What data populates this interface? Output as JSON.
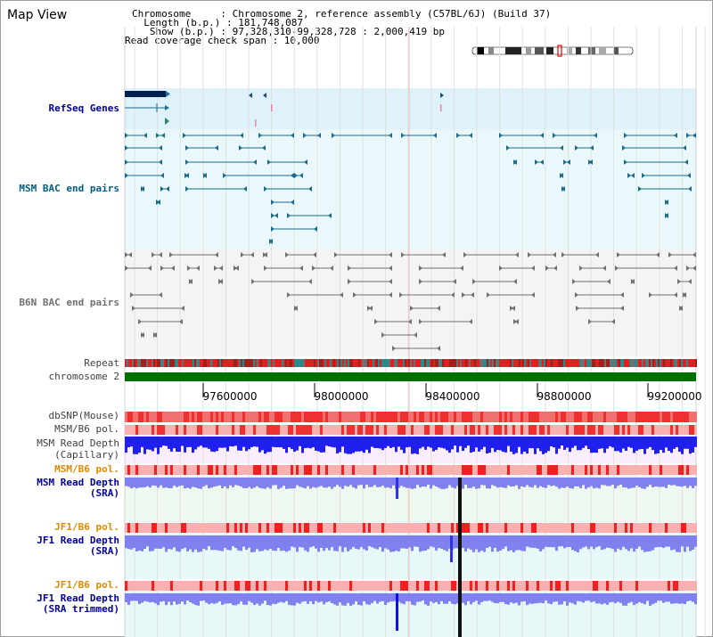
{
  "page": {
    "title": "Map View"
  },
  "info": {
    "chromosome_line": "Chromosome     : Chromosome 2, reference assembly (C57BL/6J) (Build 37)",
    "length_line": "  Length (b.p.) : 181,748,087",
    "show_line": "   Show (b.p.) : 97,328,310-99,328,728 : 2,000,419 bp",
    "coverage_line": "Read coverage check span : 10,000"
  },
  "tracks": {
    "refseq": "RefSeq Genes",
    "msm_bac": "MSM BAC end pairs",
    "b6n_bac": "B6N BAC end pairs",
    "repeat": "Repeat",
    "chromosome": "chromosome 2",
    "dbsnp": "dbSNP(Mouse)",
    "msm_b6_pol": "MSM/B6 pol.",
    "msm_read_depth_cap_1": "MSM Read Depth",
    "msm_read_depth_cap_2": "(Capillary)",
    "msm_b6_pol_2": "MSM/B6 pol.",
    "msm_read_depth_sra_1": "MSM Read Depth",
    "msm_read_depth_sra_2": "(SRA)",
    "jf1_b6_pol": "JF1/B6 pol.",
    "jf1_read_depth_sra_1": "JF1 Read Depth",
    "jf1_read_depth_sra_2": "(SRA)",
    "jf1_b6_pol_2": "JF1/B6 pol.",
    "jf1_read_depth_trim_1": "JF1 Read Depth",
    "jf1_read_depth_trim_2": "(SRA trimmed)"
  },
  "axis": {
    "ticks": [
      "97600000",
      "98000000",
      "98400000",
      "98800000",
      "99200000"
    ]
  },
  "colors": {
    "refseq_bg": "#dff1fb",
    "msm_bac_bg": "#eaf8fb",
    "b6n_bac_bg": "#f4f4f4",
    "gene": "#1a6d8a",
    "b6n": "#707070",
    "chromosome_bar": "#007000",
    "depth_blue": "#2020ee",
    "depth_light": "#8080ee",
    "snp_red": "#ee3030",
    "pol_light": "#f8b0b0",
    "pink_bg": "#fbeefb",
    "green_bg": "#eef8ee",
    "cyan_bg": "#e6f8f8"
  }
}
